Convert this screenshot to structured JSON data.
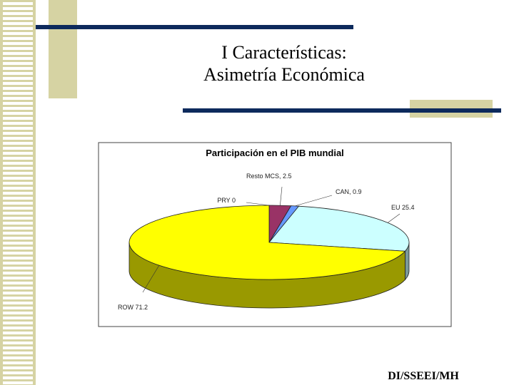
{
  "slide": {
    "title_lines": [
      "I Características:",
      "Asimetría Económica"
    ],
    "footer": "DI/SSEEI/MH"
  },
  "chart_data": {
    "type": "pie3d",
    "title": "Participación en el PIB mundial",
    "values": [
      0,
      2.5,
      0.9,
      25.4,
      71.2
    ],
    "value_labels": [
      "PRY  0",
      "Resto MCS, 2.5",
      "CAN, 0.9",
      "EU 25.4",
      "ROW  71.2"
    ],
    "colors": [
      "#ffffff",
      "#993366",
      "#6699ff",
      "#ccffff",
      "#ffff00"
    ]
  }
}
